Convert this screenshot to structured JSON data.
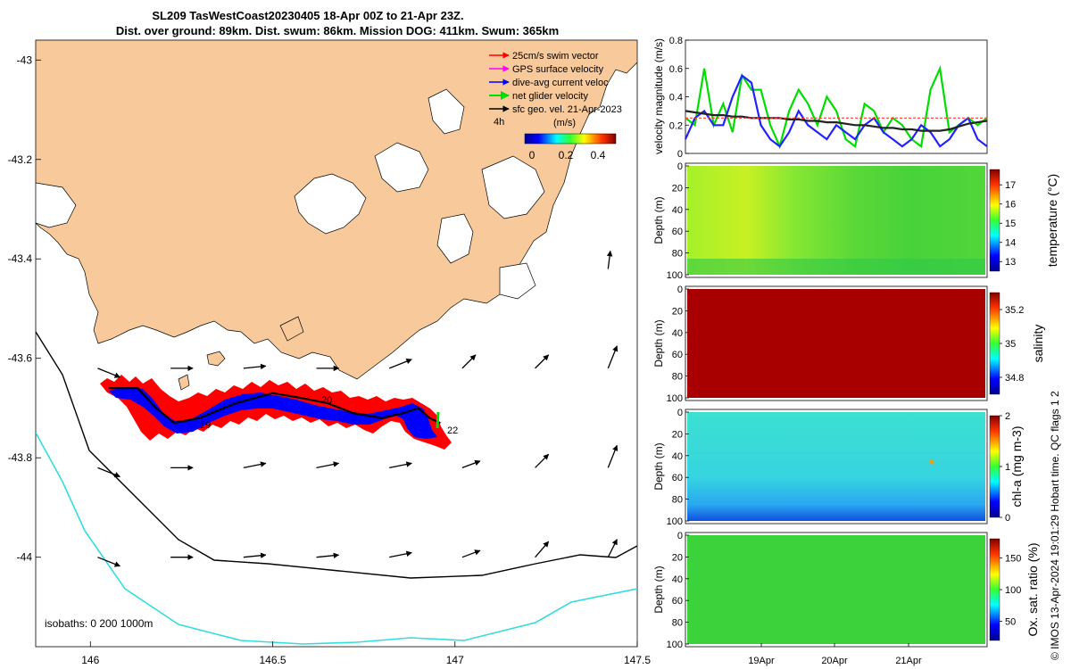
{
  "title": {
    "line1": "SL209 TasWestCoast20230405 18-Apr 00Z to 21-Apr 23Z.",
    "line2": "Dist. over ground: 89km. Dist. swum: 86km. Mission DOG: 411km. Swum: 365km"
  },
  "credit": "© IMOS 13-Apr-2024 19:01:29 Hobart time. QC flags 1  2",
  "colors": {
    "land": "#f8c99a",
    "blue_track": "#0000ff",
    "red_swim": "#ff0000",
    "green_net": "#00ff00",
    "isobath_200": "#000000",
    "isobath_1000": "#33dddd"
  },
  "chart_data": [
    {
      "type": "map",
      "xlim": [
        145.85,
        147.5
      ],
      "ylim": [
        -44.18,
        -42.96
      ],
      "xticks": [
        146,
        146.5,
        147,
        147.5
      ],
      "xtick_labels": [
        "146",
        "146.5",
        "147",
        "147.5"
      ],
      "yticks": [
        -43,
        -43.2,
        -43.4,
        -43.6,
        -43.8,
        -44
      ],
      "ytick_labels": [
        "-43",
        "-43.2",
        "-43.4",
        "-43.6",
        "-43.8",
        "-44"
      ],
      "legend": [
        {
          "label": "25cm/s swim vector",
          "color": "#ff0000"
        },
        {
          "label": "GPS surface velocity",
          "color": "#ff00ff"
        },
        {
          "label": "dive-avg current veloc",
          "color": "#0000ff"
        },
        {
          "label": "net glider velocity",
          "color": "#00ff00"
        },
        {
          "label": "sfc geo. vel. 21-Apr-2023",
          "color": "#000000"
        }
      ],
      "colorbar": {
        "label": "(m/s)",
        "ticks": [
          "0",
          "0.2",
          "0.4"
        ],
        "side_label": "4h"
      },
      "isobaths_label": "isobaths: 0   200  1000m",
      "track_labels": [
        "19",
        "20",
        "22"
      ],
      "glider_track": {
        "lon": [
          146.05,
          146.08,
          146.13,
          146.18,
          146.23,
          146.3,
          146.4,
          146.5,
          146.58,
          146.65,
          146.72,
          146.8,
          146.86,
          146.9,
          146.93,
          146.96
        ],
        "lat": [
          -43.66,
          -43.66,
          -43.66,
          -43.7,
          -43.73,
          -43.72,
          -43.69,
          -43.67,
          -43.68,
          -43.69,
          -43.71,
          -43.72,
          -43.71,
          -43.7,
          -43.72,
          -43.73
        ]
      },
      "geo_vectors": {
        "lon": [
          146.02,
          146.22,
          146.42,
          146.62,
          146.82,
          147.02,
          147.22,
          147.42,
          146.02,
          146.22,
          146.42,
          146.62,
          146.82,
          147.02,
          147.22,
          147.42,
          146.02,
          146.22,
          146.42,
          146.62,
          146.82,
          147.02,
          147.22,
          147.42,
          147.42
        ],
        "lat": [
          -43.62,
          -43.62,
          -43.62,
          -43.62,
          -43.62,
          -43.62,
          -43.62,
          -43.62,
          -43.82,
          -43.82,
          -43.82,
          -43.82,
          -43.82,
          -43.82,
          -43.82,
          -43.82,
          -44.0,
          -44.0,
          -44.0,
          -44.0,
          -44.0,
          -44.0,
          -44.0,
          -44.0,
          -43.42
        ],
        "u": [
          0.5,
          0.5,
          0.5,
          0.5,
          0.5,
          0.3,
          0.3,
          0.2,
          0.5,
          0.5,
          0.5,
          0.5,
          0.5,
          0.4,
          0.3,
          0.2,
          0.5,
          0.5,
          0.5,
          0.5,
          0.5,
          0.4,
          0.3,
          0.2,
          0.05
        ],
        "v": [
          -0.2,
          0.0,
          0.05,
          0.0,
          0.2,
          0.3,
          0.3,
          0.5,
          -0.2,
          0.0,
          0.1,
          0.1,
          0.1,
          0.15,
          0.3,
          0.5,
          -0.2,
          0.0,
          0.05,
          0.05,
          0.1,
          0.15,
          0.35,
          0.4,
          0.4
        ]
      }
    },
    {
      "type": "line",
      "ylabel": "velocity magnitude (m/s)",
      "ylim": [
        0,
        0.8
      ],
      "yticks": [
        "0",
        "0.2",
        "0.4",
        "0.6",
        "0.8"
      ],
      "series": [
        {
          "name": "net glider velocity",
          "color": "#00dd00",
          "values": [
            0.25,
            0.2,
            0.6,
            0.2,
            0.35,
            0.15,
            0.55,
            0.45,
            0.45,
            0.2,
            0.05,
            0.3,
            0.45,
            0.35,
            0.2,
            0.4,
            0.3,
            0.1,
            0.05,
            0.35,
            0.3,
            0.15,
            0.25,
            0.2,
            0.1,
            0.05,
            0.45,
            0.6,
            0.15,
            0.2,
            0.25,
            0.2,
            0.25
          ]
        },
        {
          "name": "dive-avg current",
          "color": "#2222ff",
          "values": [
            0.1,
            0.25,
            0.3,
            0.2,
            0.2,
            0.4,
            0.55,
            0.5,
            0.2,
            0.1,
            0.05,
            0.15,
            0.3,
            0.2,
            0.15,
            0.1,
            0.2,
            0.15,
            0.1,
            0.2,
            0.25,
            0.15,
            0.1,
            0.05,
            0.1,
            0.2,
            0.15,
            0.05,
            0.1,
            0.2,
            0.25,
            0.1,
            0.05
          ]
        },
        {
          "name": "surface geostrophic",
          "color": "#222222",
          "values": [
            0.3,
            0.29,
            0.28,
            0.27,
            0.27,
            0.26,
            0.26,
            0.25,
            0.25,
            0.25,
            0.25,
            0.24,
            0.24,
            0.23,
            0.23,
            0.22,
            0.22,
            0.21,
            0.2,
            0.2,
            0.19,
            0.18,
            0.18,
            0.17,
            0.17,
            0.16,
            0.16,
            0.16,
            0.17,
            0.19,
            0.21,
            0.22,
            0.23
          ]
        },
        {
          "name": "25cm/s swim",
          "color": "#ff3333",
          "values": [
            0.25,
            0.25,
            0.25,
            0.25,
            0.25,
            0.25,
            0.25,
            0.25,
            0.25,
            0.25,
            0.25,
            0.25,
            0.25,
            0.25,
            0.25,
            0.25,
            0.25,
            0.25,
            0.25,
            0.25,
            0.25,
            0.25,
            0.25,
            0.25,
            0.25,
            0.25,
            0.25,
            0.25,
            0.25,
            0.25,
            0.25,
            0.25,
            0.25
          ]
        }
      ]
    },
    {
      "type": "heatmap",
      "variable": "temperature (°C)",
      "ylabel": "Depth (m)",
      "yticks": [
        "0",
        "20",
        "40",
        "60",
        "80",
        "100"
      ],
      "colorbar_ticks": [
        "17",
        "16",
        "15",
        "14",
        "13"
      ],
      "clim": [
        12.5,
        17.8
      ],
      "dominant_value": 15.2
    },
    {
      "type": "heatmap",
      "variable": "salinity",
      "ylabel": "Depth (m)",
      "yticks": [
        "0",
        "20",
        "40",
        "60",
        "80",
        "100"
      ],
      "colorbar_ticks": [
        "35.2",
        "35",
        "34.8"
      ],
      "clim": [
        34.7,
        35.3
      ],
      "dominant_value": 35.3
    },
    {
      "type": "heatmap",
      "variable": "chl-a (mg m-3)",
      "ylabel": "Depth (m)",
      "yticks": [
        "0",
        "20",
        "40",
        "60",
        "80",
        "100"
      ],
      "colorbar_ticks": [
        "2",
        "1",
        "0"
      ],
      "clim": [
        0,
        2
      ],
      "dominant_value": 0.7
    },
    {
      "type": "heatmap",
      "variable": "Ox. sat. ratio (%)",
      "ylabel": "Depth (m)",
      "yticks": [
        "0",
        "20",
        "40",
        "60",
        "80",
        "100"
      ],
      "colorbar_ticks": [
        "150",
        "100",
        "50"
      ],
      "clim": [
        20,
        180
      ],
      "dominant_value": 102
    }
  ],
  "time_axis": {
    "labels": [
      "19Apr",
      "20Apr",
      "21Apr"
    ]
  }
}
